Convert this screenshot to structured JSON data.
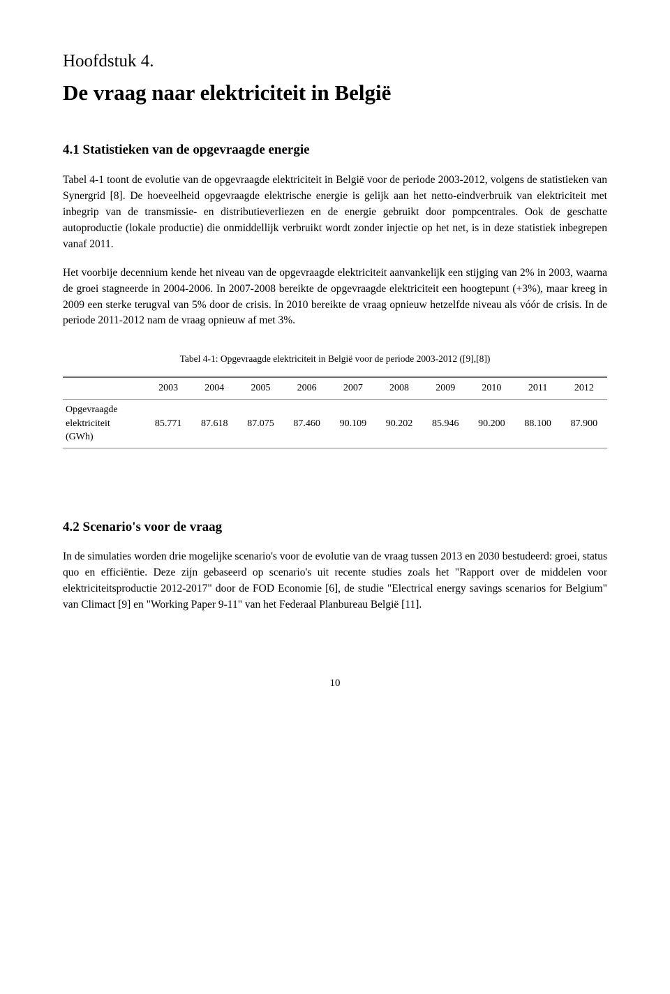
{
  "chapter": {
    "label": "Hoofdstuk 4.",
    "title": "De vraag naar elektriciteit in België"
  },
  "section1": {
    "heading": "4.1  Statistieken van de opgevraagde energie",
    "para1": "Tabel 4-1 toont de evolutie van de opgevraagde elektriciteit in België voor de periode 2003-2012, volgens de statistieken van Synergrid [8]. De hoeveelheid opgevraagde elektrische energie is gelijk aan het netto-eindverbruik van elektriciteit met inbegrip van de transmissie- en distributieverliezen en de energie gebruikt door pompcentrales. Ook de geschatte autoproductie (lokale productie) die onmiddellijk verbruikt wordt zonder injectie op het net, is in deze statistiek inbegrepen vanaf 2011.",
    "para2": "Het voorbije decennium kende het niveau van de opgevraagde elektriciteit aanvankelijk een stijging van 2% in 2003, waarna de groei stagneerde in 2004-2006. In 2007-2008 bereikte de opgevraagde elektriciteit een hoogtepunt (+3%), maar kreeg in 2009 een sterke terugval van 5% door de crisis. In 2010 bereikte de vraag opnieuw hetzelfde niveau als vóór de crisis. In de periode 2011-2012 nam de vraag opnieuw af met 3%."
  },
  "table": {
    "caption": "Tabel 4-1: Opgevraagde elektriciteit in België voor de periode 2003-2012 ([9],[8])",
    "row_label_line1": "Opgevraagde",
    "row_label_line2": "elektriciteit",
    "row_label_line3": "(GWh)",
    "years": [
      "2003",
      "2004",
      "2005",
      "2006",
      "2007",
      "2008",
      "2009",
      "2010",
      "2011",
      "2012"
    ],
    "values": [
      "85.771",
      "87.618",
      "87.075",
      "87.460",
      "90.109",
      "90.202",
      "85.946",
      "90.200",
      "88.100",
      "87.900"
    ]
  },
  "section2": {
    "heading": "4.2  Scenario's voor de vraag",
    "para1": "In de simulaties worden drie mogelijke scenario's voor de evolutie van de vraag tussen 2013 en 2030 bestudeerd: groei, status quo en efficiëntie. Deze zijn gebaseerd op scenario's uit recente studies zoals het \"Rapport over de middelen voor elektriciteitsproductie 2012-2017\" door de FOD Economie [6],  de studie \"Electrical energy savings scenarios for Belgium\" van Climact [9] en \"Working Paper 9-11\" van het Federaal Planbureau België [11]."
  },
  "page_number": "10"
}
